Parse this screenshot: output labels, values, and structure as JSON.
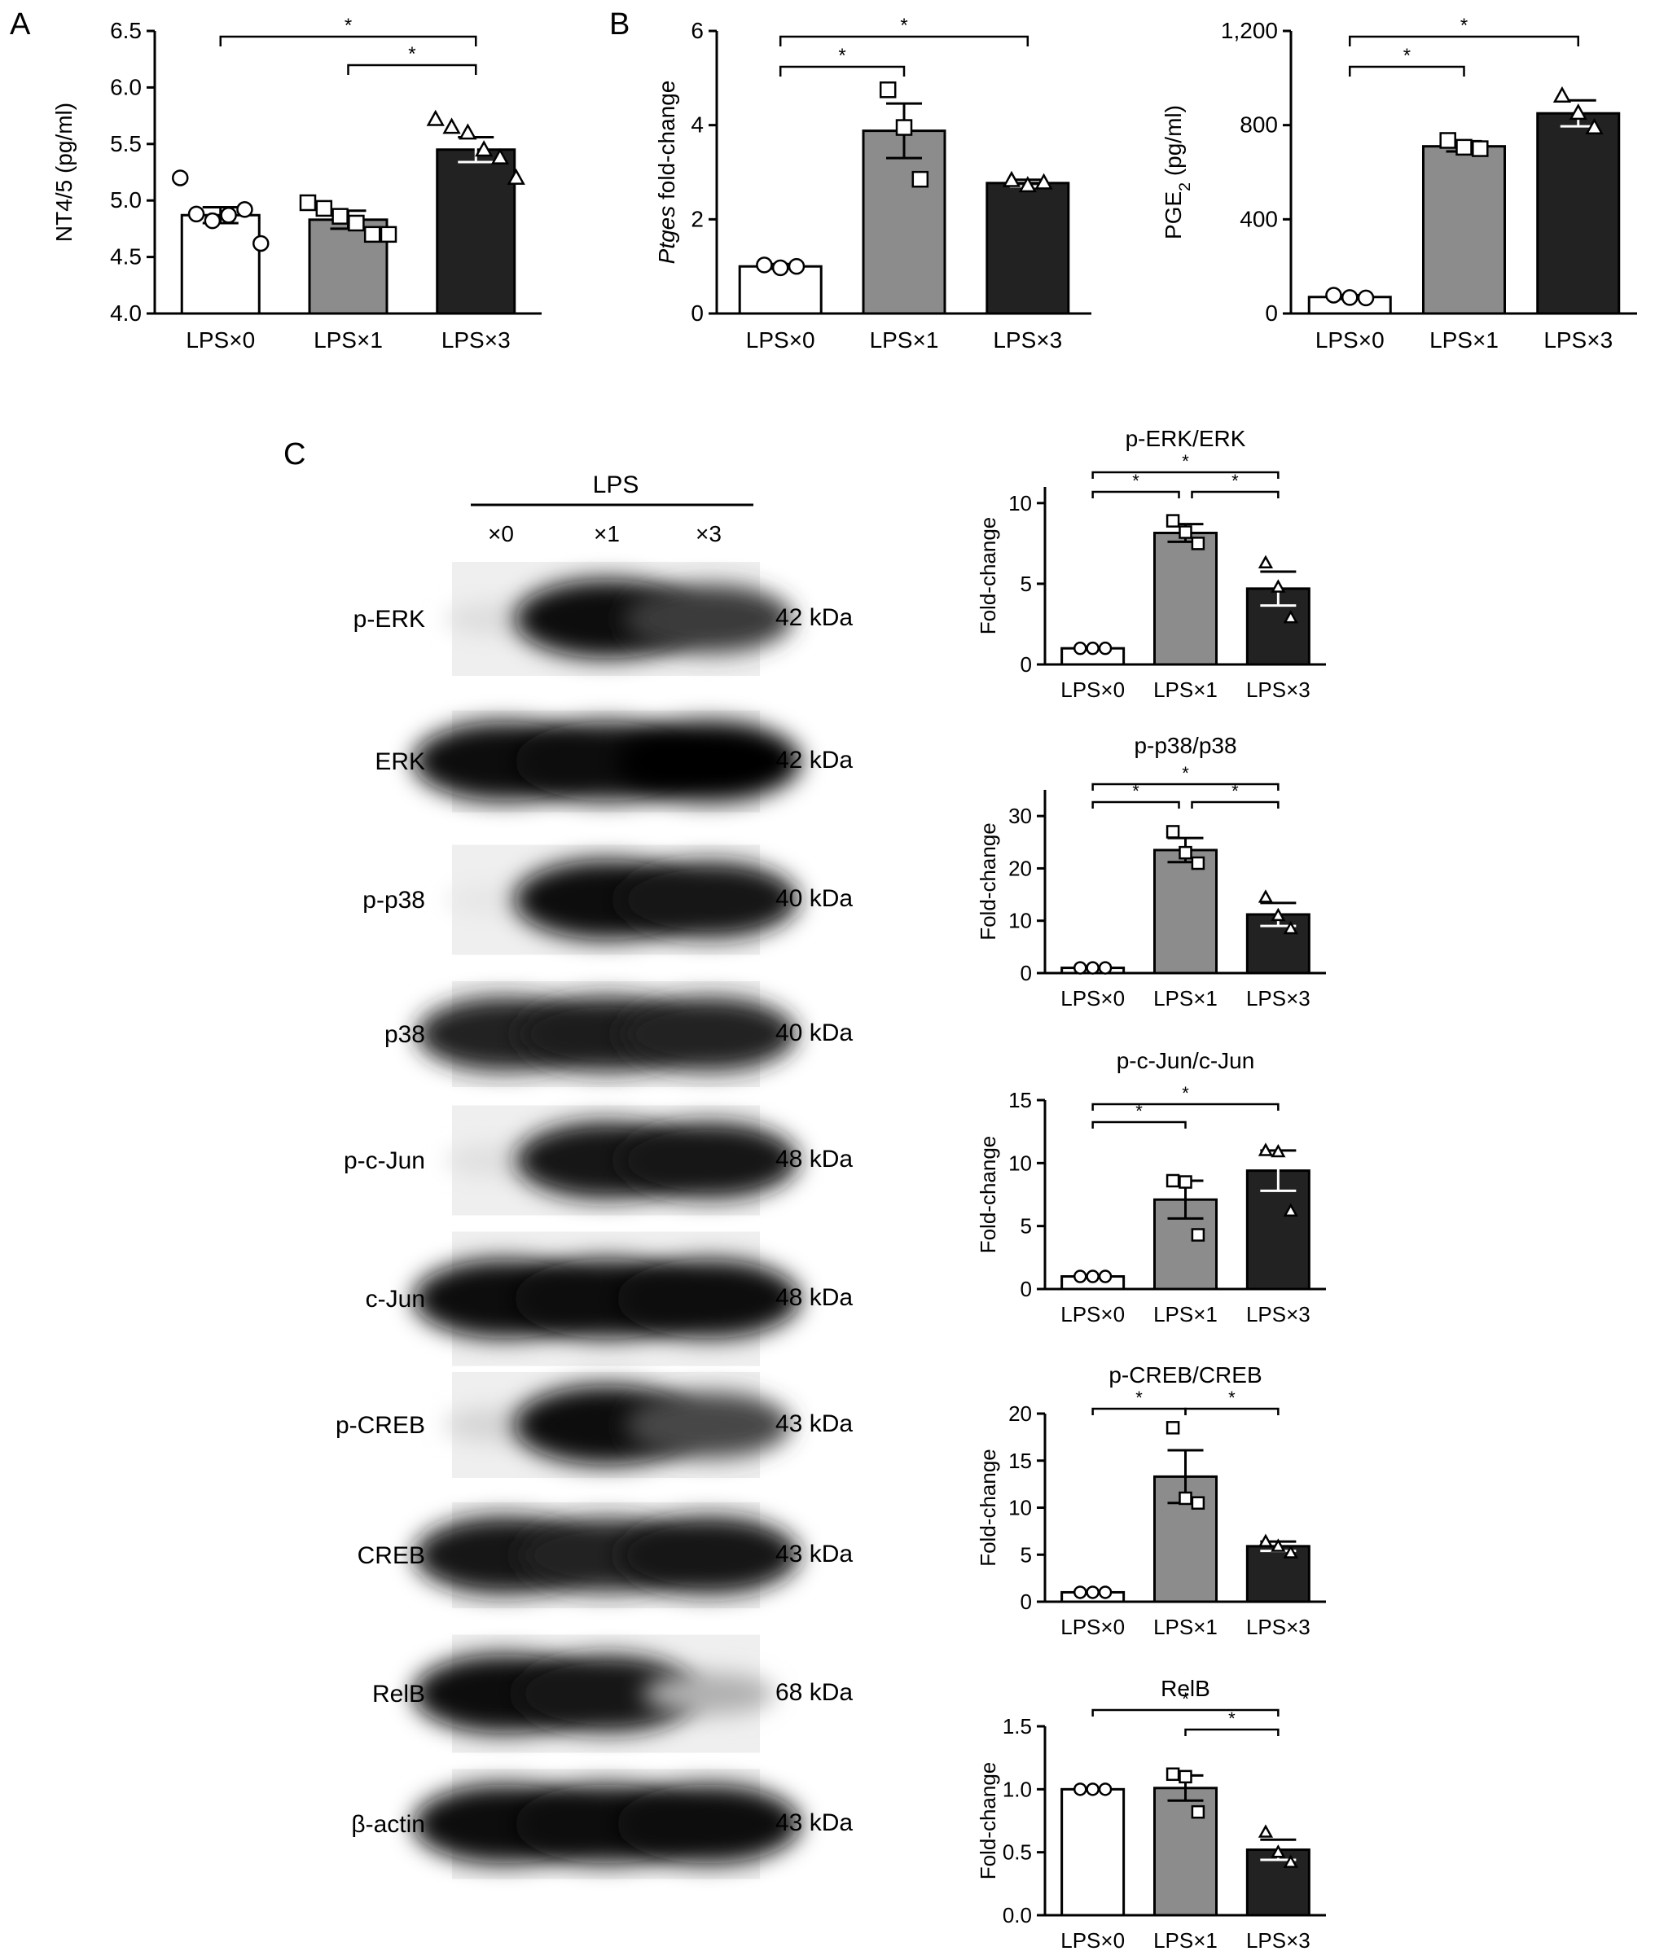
{
  "panel_letters": {
    "a": "A",
    "b": "B",
    "c": "C"
  },
  "colors": {
    "LPSx0": "#ffffff",
    "LPSx1": "#8c8c8c",
    "LPSx3": "#222222",
    "axis": "#000000"
  },
  "blot": {
    "header": "LPS",
    "lanes": [
      "×0",
      "×1",
      "×3"
    ],
    "rows": [
      {
        "label": "p-ERK",
        "kda": "42 kDa",
        "intensities": [
          0.06,
          0.95,
          0.75
        ]
      },
      {
        "label": "ERK",
        "kda": "42 kDa",
        "intensities": [
          0.95,
          0.95,
          0.98
        ]
      },
      {
        "label": "p-p38",
        "kda": "40 kDa",
        "intensities": [
          0.02,
          0.97,
          0.9
        ]
      },
      {
        "label": "p38",
        "kda": "40 kDa",
        "intensities": [
          0.85,
          0.88,
          0.85
        ]
      },
      {
        "label": "p-c-Jun",
        "kda": "48 kDa",
        "intensities": [
          0.05,
          0.92,
          0.9
        ]
      },
      {
        "label": "c-Jun",
        "kda": "48 kDa",
        "intensities": [
          0.95,
          0.97,
          0.95
        ]
      },
      {
        "label": "p-CREB",
        "kda": "43 kDa",
        "intensities": [
          0.1,
          0.97,
          0.7
        ]
      },
      {
        "label": "CREB",
        "kda": "43 kDa",
        "intensities": [
          0.92,
          0.85,
          0.92
        ]
      },
      {
        "label": "RelB",
        "kda": "68 kDa",
        "intensities": [
          0.95,
          0.92,
          0.25
        ]
      },
      {
        "label": "β-actin",
        "kda": "43 kDa",
        "intensities": [
          0.95,
          0.95,
          0.95
        ]
      }
    ]
  },
  "chart_data": [
    {
      "id": "A",
      "type": "bar",
      "title": "",
      "xlabel": "",
      "ylabel": "NT4/5 (pg/ml)",
      "categories": [
        "LPS×0",
        "LPS×1",
        "LPS×3"
      ],
      "values": [
        4.87,
        4.83,
        5.45
      ],
      "errors": [
        0.07,
        0.08,
        0.11
      ],
      "points": [
        [
          5.2,
          4.88,
          4.82,
          4.87,
          4.92,
          4.62
        ],
        [
          4.98,
          4.93,
          4.86,
          4.8,
          4.7,
          4.7
        ],
        [
          5.72,
          5.65,
          5.6,
          5.45,
          5.38,
          5.2
        ]
      ],
      "marker": [
        "circle",
        "square",
        "triangle"
      ],
      "ylim": [
        4.0,
        6.5
      ],
      "yticks": [
        "4.0",
        "4.5",
        "5.0",
        "5.5",
        "6.0",
        "6.5"
      ],
      "significance": [
        {
          "from": "LPS×0",
          "to": "LPS×3",
          "label": "*"
        },
        {
          "from": "LPS×1",
          "to": "LPS×3",
          "label": "*"
        }
      ]
    },
    {
      "id": "B1",
      "type": "bar",
      "title": "",
      "xlabel": "",
      "ylabel_italic": "Ptges",
      "ylabel": " fold-change",
      "categories": [
        "LPS×0",
        "LPS×1",
        "LPS×3"
      ],
      "values": [
        1.0,
        3.88,
        2.77
      ],
      "errors": [
        0.05,
        0.58,
        0.07
      ],
      "points": [
        [
          1.03,
          0.97,
          1.0
        ],
        [
          4.75,
          3.95,
          2.85
        ],
        [
          2.83,
          2.72,
          2.78
        ]
      ],
      "marker": [
        "circle",
        "square",
        "triangle"
      ],
      "ylim": [
        0,
        6
      ],
      "yticks": [
        "0",
        "2",
        "4",
        "6"
      ],
      "significance": [
        {
          "from": "LPS×0",
          "to": "LPS×3",
          "label": "*"
        },
        {
          "from": "LPS×0",
          "to": "LPS×1",
          "label": "*"
        }
      ]
    },
    {
      "id": "B2",
      "type": "bar",
      "title": "",
      "xlabel": "",
      "ylabel": "PGE",
      "ylabel_sub": "2",
      "ylabel_tail": " (pg/ml)",
      "categories": [
        "LPS×0",
        "LPS×1",
        "LPS×3"
      ],
      "values": [
        70,
        710,
        850
      ],
      "errors": [
        8,
        22,
        55
      ],
      "points": [
        [
          78,
          68,
          66
        ],
        [
          735,
          706,
          700
        ],
        [
          925,
          852,
          790
        ]
      ],
      "marker": [
        "circle",
        "square",
        "triangle"
      ],
      "ylim": [
        0,
        1200
      ],
      "yticks": [
        "0",
        "400",
        "800",
        "1,200"
      ],
      "significance": [
        {
          "from": "LPS×0",
          "to": "LPS×3",
          "label": "*"
        },
        {
          "from": "LPS×0",
          "to": "LPS×1",
          "label": "*"
        }
      ]
    },
    {
      "id": "C1",
      "type": "bar",
      "title": "p-ERK/ERK",
      "xlabel": "",
      "ylabel": "Fold-change",
      "categories": [
        "LPS×0",
        "LPS×1",
        "LPS×3"
      ],
      "values": [
        1.0,
        8.15,
        4.7
      ],
      "errors": [
        0.05,
        0.55,
        1.05
      ],
      "points": [
        [
          1.0,
          1.0,
          1.0
        ],
        [
          8.9,
          8.2,
          7.5
        ],
        [
          6.3,
          4.8,
          2.9
        ]
      ],
      "marker": [
        "circle",
        "square",
        "triangle"
      ],
      "ylim": [
        0,
        11
      ],
      "yticks": [
        "0",
        "5",
        "10"
      ],
      "ytick_values": [
        0,
        5,
        10
      ],
      "significance": [
        {
          "from": "LPS×0",
          "to": "LPS×3",
          "label": "*"
        },
        {
          "from": "LPS×0",
          "to": "LPS×1",
          "label": "*"
        },
        {
          "from": "LPS×1",
          "to": "LPS×3",
          "label": "*"
        }
      ]
    },
    {
      "id": "C2",
      "type": "bar",
      "title": "p-p38/p38",
      "xlabel": "",
      "ylabel": "Fold-change",
      "categories": [
        "LPS×0",
        "LPS×1",
        "LPS×3"
      ],
      "values": [
        1.0,
        23.5,
        11.2
      ],
      "errors": [
        0.1,
        2.3,
        2.2
      ],
      "points": [
        [
          1.0,
          1.0,
          1.0
        ],
        [
          27.0,
          23.0,
          21.0
        ],
        [
          14.5,
          11.0,
          8.5
        ]
      ],
      "marker": [
        "circle",
        "square",
        "triangle"
      ],
      "ylim": [
        0,
        35
      ],
      "yticks": [
        "0",
        "10",
        "20",
        "30"
      ],
      "ytick_values": [
        0,
        10,
        20,
        30
      ],
      "significance": [
        {
          "from": "LPS×0",
          "to": "LPS×3",
          "label": "*"
        },
        {
          "from": "LPS×0",
          "to": "LPS×1",
          "label": "*"
        },
        {
          "from": "LPS×1",
          "to": "LPS×3",
          "label": "*"
        }
      ]
    },
    {
      "id": "C3",
      "type": "bar",
      "title": "p-c-Jun/c-Jun",
      "xlabel": "",
      "ylabel": "Fold-change",
      "categories": [
        "LPS×0",
        "LPS×1",
        "LPS×3"
      ],
      "values": [
        1.0,
        7.1,
        9.4
      ],
      "errors": [
        0.05,
        1.5,
        1.6
      ],
      "points": [
        [
          1.0,
          1.0,
          1.0
        ],
        [
          8.6,
          8.5,
          4.3
        ],
        [
          11.0,
          10.9,
          6.2
        ]
      ],
      "marker": [
        "circle",
        "square",
        "triangle"
      ],
      "ylim": [
        0,
        15
      ],
      "yticks": [
        "0",
        "5",
        "10",
        "15"
      ],
      "ytick_values": [
        0,
        5,
        10,
        15
      ],
      "significance": [
        {
          "from": "LPS×0",
          "to": "LPS×3",
          "label": "*"
        },
        {
          "from": "LPS×0",
          "to": "LPS×1",
          "label": "*"
        }
      ]
    },
    {
      "id": "C4",
      "type": "bar",
      "title": "p-CREB/CREB",
      "xlabel": "",
      "ylabel": "Fold-change",
      "categories": [
        "LPS×0",
        "LPS×1",
        "LPS×3"
      ],
      "values": [
        1.0,
        13.3,
        5.9
      ],
      "errors": [
        0.05,
        2.8,
        0.5
      ],
      "points": [
        [
          1.0,
          1.0,
          1.0
        ],
        [
          18.5,
          11.0,
          10.5
        ],
        [
          6.4,
          5.9,
          5.2
        ]
      ],
      "marker": [
        "circle",
        "square",
        "triangle"
      ],
      "ylim": [
        0,
        20
      ],
      "yticks": [
        "0",
        "5",
        "10",
        "15",
        "20"
      ],
      "ytick_values": [
        0,
        5,
        10,
        15,
        20
      ],
      "significance": [
        {
          "from": "LPS×0",
          "to": "LPS×1",
          "label": "*"
        },
        {
          "from": "LPS×1",
          "to": "LPS×3",
          "label": "*"
        }
      ]
    },
    {
      "id": "C5",
      "type": "bar",
      "title": "RelB",
      "xlabel": "",
      "ylabel": "Fold-change",
      "categories": [
        "LPS×0",
        "LPS×1",
        "LPS×3"
      ],
      "values": [
        1.0,
        1.01,
        0.52
      ],
      "errors": [
        0.005,
        0.1,
        0.08
      ],
      "points": [
        [
          1.0,
          1.0,
          1.0
        ],
        [
          1.12,
          1.1,
          0.82
        ],
        [
          0.66,
          0.5,
          0.42
        ]
      ],
      "marker": [
        "circle",
        "square",
        "triangle"
      ],
      "ylim": [
        0,
        1.5
      ],
      "yticks": [
        "0.0",
        "0.5",
        "1.0",
        "1.5"
      ],
      "ytick_values": [
        0,
        0.5,
        1.0,
        1.5
      ],
      "significance": [
        {
          "from": "LPS×0",
          "to": "LPS×3",
          "label": "*"
        },
        {
          "from": "LPS×1",
          "to": "LPS×3",
          "label": "*"
        }
      ]
    }
  ]
}
